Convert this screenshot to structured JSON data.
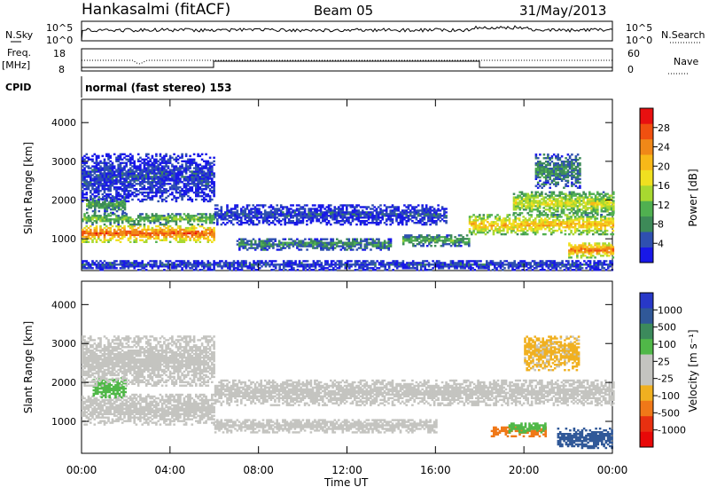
{
  "header": {
    "station": "Hankasalmi (fitACF)",
    "beam": "Beam 05",
    "date": "31/May/2013"
  },
  "top_panels": {
    "nsky_label": "N.Sky",
    "nsearch_label": "N.Search",
    "noise_ticks_left": [
      "10^5",
      "10^0"
    ],
    "noise_ticks_right": [
      "10^5",
      "10^0"
    ],
    "freq_label_1": "Freq.",
    "freq_label_2": "[MHz]",
    "freq_ticks": [
      "18",
      "8"
    ],
    "nave_label": "Nave",
    "nave_ticks": [
      "60",
      "0"
    ],
    "cpid_label": "CPID",
    "cpid_text": "normal (fast stereo) 153"
  },
  "chart_data": [
    {
      "type": "heatmap",
      "name": "power",
      "xlabel": "Time UT",
      "ylabel": "Slant Range [km]",
      "xlim": [
        0,
        24
      ],
      "ylim": [
        180,
        4600
      ],
      "x_ticks": [
        "00:00",
        "04:00",
        "08:00",
        "12:00",
        "16:00",
        "20:00",
        "00:00"
      ],
      "y_ticks": [
        "1000",
        "2000",
        "3000",
        "4000"
      ],
      "colorbar": {
        "label": "Power [dB]",
        "ticks": [
          "4",
          "8",
          "12",
          "16",
          "20",
          "24",
          "28"
        ],
        "colors": [
          "#1818e8",
          "#2f50b0",
          "#3d8a58",
          "#50b050",
          "#a8d830",
          "#f0e020",
          "#f8b818",
          "#f08818",
          "#f05010",
          "#e81010"
        ]
      },
      "bands": [
        {
          "t0": 0.0,
          "t1": 6.0,
          "r0": 900,
          "r1": 1350,
          "level": 27
        },
        {
          "t0": 0.0,
          "t1": 6.0,
          "r0": 1350,
          "r1": 1650,
          "level": 14
        },
        {
          "t0": 0.2,
          "t1": 2.0,
          "r0": 1650,
          "r1": 2100,
          "level": 12
        },
        {
          "t0": 0.0,
          "t1": 6.0,
          "r0": 1950,
          "r1": 3200,
          "level": 6
        },
        {
          "t0": 6.0,
          "t1": 16.5,
          "r0": 1350,
          "r1": 1850,
          "level": 6
        },
        {
          "t0": 7.0,
          "t1": 14.0,
          "r0": 700,
          "r1": 1000,
          "level": 10
        },
        {
          "t0": 14.5,
          "t1": 17.5,
          "r0": 800,
          "r1": 1100,
          "level": 12
        },
        {
          "t0": 17.5,
          "t1": 24.0,
          "r0": 1100,
          "r1": 1600,
          "level": 22
        },
        {
          "t0": 19.5,
          "t1": 24.0,
          "r0": 1600,
          "r1": 2200,
          "level": 18
        },
        {
          "t0": 20.5,
          "t1": 22.5,
          "r0": 2300,
          "r1": 3200,
          "level": 10
        },
        {
          "t0": 22.0,
          "t1": 24.0,
          "r0": 500,
          "r1": 900,
          "level": 26
        },
        {
          "t0": 0.0,
          "t1": 24.0,
          "r0": 180,
          "r1": 450,
          "level": 6
        }
      ]
    },
    {
      "type": "heatmap",
      "name": "velocity",
      "xlabel": "Time UT",
      "ylabel": "Slant Range [km]",
      "xlim": [
        0,
        24
      ],
      "ylim": [
        180,
        4600
      ],
      "x_ticks": [
        "00:00",
        "04:00",
        "08:00",
        "12:00",
        "16:00",
        "20:00",
        "00:00"
      ],
      "y_ticks": [
        "1000",
        "2000",
        "3000",
        "4000"
      ],
      "colorbar": {
        "label": "Velocity [m s⁻¹]",
        "ticks": [
          "1000",
          "500",
          "100",
          "25",
          "-25",
          "-100",
          "-500",
          "-1000"
        ],
        "colors": [
          "#2838c8",
          "#305898",
          "#3c8a5c",
          "#50b848",
          "#c4c4c0",
          "#c4c4c0",
          "#f0b020",
          "#f07818",
          "#e83010",
          "#e80808"
        ]
      },
      "bands": [
        {
          "t0": 0.0,
          "t1": 6.0,
          "r0": 900,
          "r1": 1700,
          "vel": 0
        },
        {
          "t0": 0.5,
          "t1": 2.0,
          "r0": 1600,
          "r1": 2100,
          "vel": 150
        },
        {
          "t0": 0.0,
          "t1": 6.0,
          "r0": 1900,
          "r1": 3200,
          "vel": 0
        },
        {
          "t0": 6.0,
          "t1": 24.0,
          "r0": 1400,
          "r1": 2050,
          "vel": 0
        },
        {
          "t0": 6.0,
          "t1": 16.0,
          "r0": 700,
          "r1": 1050,
          "vel": 0
        },
        {
          "t0": 18.5,
          "t1": 21.0,
          "r0": 600,
          "r1": 850,
          "vel": -300
        },
        {
          "t0": 19.3,
          "t1": 21.0,
          "r0": 700,
          "r1": 950,
          "vel": 150
        },
        {
          "t0": 21.5,
          "t1": 24.0,
          "r0": 300,
          "r1": 800,
          "vel": 400
        },
        {
          "t0": 20.0,
          "t1": 22.5,
          "r0": 2300,
          "r1": 3200,
          "vel": -80
        }
      ]
    }
  ]
}
